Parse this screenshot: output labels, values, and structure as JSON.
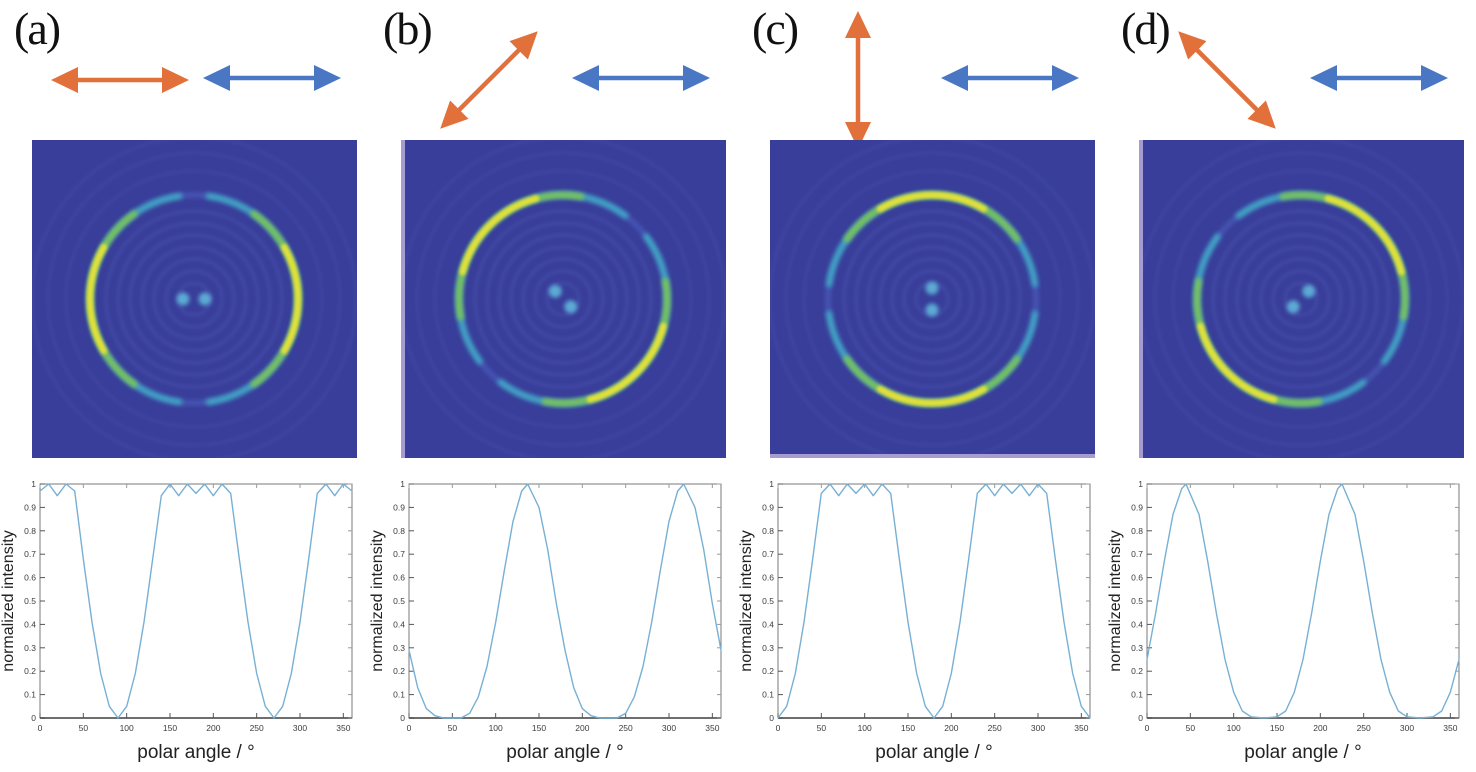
{
  "figure": {
    "panels": [
      {
        "label": "(a)",
        "orange_arrow_angle_deg": 0,
        "blue_arrow_angle_deg": 0,
        "pattern_axis_deg": 0,
        "edge_glow": "none"
      },
      {
        "label": "(b)",
        "orange_arrow_angle_deg": 45,
        "blue_arrow_angle_deg": 0,
        "pattern_axis_deg": 135,
        "edge_glow": "left"
      },
      {
        "label": "(c)",
        "orange_arrow_angle_deg": 90,
        "blue_arrow_angle_deg": 0,
        "pattern_axis_deg": 90,
        "edge_glow": "bottom"
      },
      {
        "label": "(d)",
        "orange_arrow_angle_deg": 135,
        "blue_arrow_angle_deg": 0,
        "pattern_axis_deg": 45,
        "edge_glow": "left"
      }
    ]
  },
  "colors": {
    "orange_arrow": "#E2703A",
    "blue_arrow": "#4A77C4",
    "pattern_bg": "#383E99",
    "pattern_ripple": "#4850AC",
    "ring_dim": "#4A58B8",
    "ring_cyan": "#3FB3C8",
    "ring_green": "#7CC455",
    "ring_yellow": "#E4E03A",
    "center_dot": "#5FB0D8",
    "curve": "#77B0D4",
    "axis": "#7A7A7A",
    "axis_bottom": "#6E6E6E",
    "tick_text": "#3C3C3C",
    "label_text": "#222222",
    "edge_glow": "#C3B4E0"
  },
  "chart_data": [
    {
      "type": "line",
      "panel": "(a)",
      "xlabel": "polar angle / °",
      "ylabel": "normalized intensity",
      "xlim": [
        0,
        360
      ],
      "ylim": [
        0,
        1
      ],
      "xticks": [
        0,
        50,
        100,
        150,
        200,
        250,
        300,
        350
      ],
      "yticks": [
        0,
        0.1,
        0.2,
        0.3,
        0.4,
        0.5,
        0.6,
        0.7,
        0.8,
        0.9,
        1
      ],
      "x": [
        0,
        10,
        20,
        30,
        40,
        50,
        60,
        70,
        80,
        90,
        100,
        110,
        120,
        130,
        140,
        150,
        160,
        170,
        180,
        190,
        200,
        210,
        220,
        230,
        240,
        250,
        260,
        270,
        280,
        290,
        300,
        310,
        320,
        330,
        340,
        350,
        360
      ],
      "y": [
        0.97,
        1,
        0.95,
        1,
        0.97,
        0.68,
        0.41,
        0.19,
        0.05,
        0,
        0.05,
        0.19,
        0.41,
        0.68,
        0.95,
        1,
        0.95,
        1,
        0.96,
        1,
        0.95,
        1,
        0.96,
        0.68,
        0.41,
        0.19,
        0.05,
        0,
        0.05,
        0.19,
        0.41,
        0.68,
        0.96,
        1,
        0.95,
        1,
        0.97
      ]
    },
    {
      "type": "line",
      "panel": "(b)",
      "xlabel": "polar angle / °",
      "ylabel": "normalized intensity",
      "xlim": [
        0,
        360
      ],
      "ylim": [
        0,
        1
      ],
      "xticks": [
        0,
        50,
        100,
        150,
        200,
        250,
        300,
        350
      ],
      "yticks": [
        0,
        0.1,
        0.2,
        0.3,
        0.4,
        0.5,
        0.6,
        0.7,
        0.8,
        0.9,
        1
      ],
      "x": [
        0,
        10,
        20,
        30,
        40,
        50,
        60,
        70,
        80,
        90,
        100,
        110,
        120,
        130,
        137,
        150,
        160,
        170,
        180,
        190,
        200,
        210,
        220,
        230,
        240,
        250,
        260,
        270,
        280,
        290,
        300,
        310,
        317,
        330,
        340,
        350,
        360
      ],
      "y": [
        0.29,
        0.13,
        0.04,
        0.01,
        0,
        0,
        0,
        0.02,
        0.09,
        0.22,
        0.41,
        0.63,
        0.84,
        0.97,
        1,
        0.9,
        0.72,
        0.49,
        0.29,
        0.13,
        0.04,
        0.01,
        0,
        0,
        0,
        0.02,
        0.09,
        0.22,
        0.41,
        0.63,
        0.84,
        0.97,
        1,
        0.9,
        0.72,
        0.49,
        0.29
      ]
    },
    {
      "type": "line",
      "panel": "(c)",
      "xlabel": "polar angle / °",
      "ylabel": "normalized intensity",
      "xlim": [
        0,
        360
      ],
      "ylim": [
        0,
        1
      ],
      "xticks": [
        0,
        50,
        100,
        150,
        200,
        250,
        300,
        350
      ],
      "yticks": [
        0,
        0.1,
        0.2,
        0.3,
        0.4,
        0.5,
        0.6,
        0.7,
        0.8,
        0.9,
        1
      ],
      "x": [
        0,
        10,
        20,
        30,
        40,
        50,
        60,
        70,
        80,
        90,
        100,
        110,
        120,
        130,
        140,
        150,
        160,
        170,
        180,
        190,
        200,
        210,
        220,
        230,
        240,
        250,
        260,
        270,
        280,
        290,
        300,
        310,
        320,
        330,
        340,
        350,
        360
      ],
      "y": [
        0,
        0.05,
        0.19,
        0.41,
        0.68,
        0.96,
        1,
        0.95,
        1,
        0.96,
        1,
        0.95,
        1,
        0.96,
        0.68,
        0.41,
        0.19,
        0.05,
        0,
        0.05,
        0.19,
        0.41,
        0.68,
        0.96,
        1,
        0.95,
        1,
        0.96,
        1,
        0.95,
        1,
        0.96,
        0.68,
        0.41,
        0.19,
        0.05,
        0
      ]
    },
    {
      "type": "line",
      "panel": "(d)",
      "xlabel": "polar angle / °",
      "ylabel": "normalized intensity",
      "xlim": [
        0,
        360
      ],
      "ylim": [
        0,
        1
      ],
      "xticks": [
        0,
        50,
        100,
        150,
        200,
        250,
        300,
        350
      ],
      "yticks": [
        0,
        0.1,
        0.2,
        0.3,
        0.4,
        0.5,
        0.6,
        0.7,
        0.8,
        0.9,
        1
      ],
      "x": [
        0,
        10,
        20,
        30,
        40,
        45,
        60,
        70,
        80,
        90,
        100,
        110,
        120,
        135,
        150,
        160,
        170,
        180,
        190,
        200,
        210,
        220,
        225,
        240,
        250,
        260,
        270,
        280,
        290,
        300,
        315,
        330,
        340,
        350,
        360
      ],
      "y": [
        0.25,
        0.45,
        0.67,
        0.87,
        0.98,
        1,
        0.87,
        0.67,
        0.45,
        0.25,
        0.11,
        0.03,
        0.005,
        0,
        0.005,
        0.03,
        0.11,
        0.25,
        0.45,
        0.67,
        0.87,
        0.98,
        1,
        0.87,
        0.67,
        0.45,
        0.25,
        0.11,
        0.03,
        0.005,
        0,
        0.005,
        0.03,
        0.11,
        0.25
      ]
    }
  ]
}
